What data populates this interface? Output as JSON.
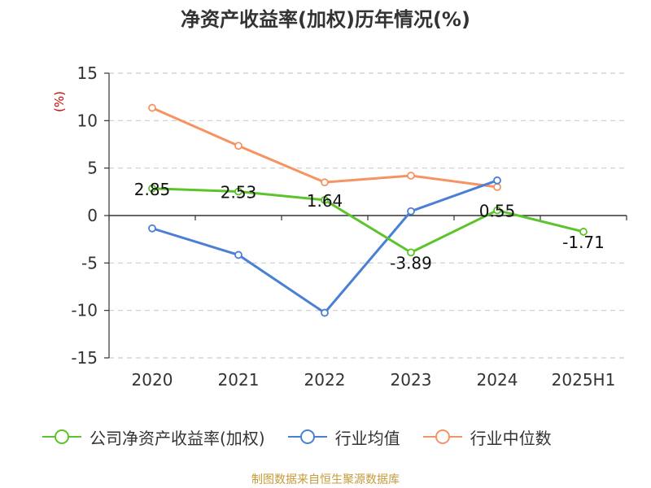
{
  "title": "净资产收益率(加权)历年情况(%)",
  "source_note": "制图数据来自恒生聚源数据库",
  "chart_data": {
    "type": "line",
    "title": "净资产收益率(加权)历年情况(%)",
    "ylabel": "(%)",
    "xlabel": "",
    "categories": [
      "2020",
      "2021",
      "2022",
      "2023",
      "2024",
      "2025H1"
    ],
    "ylim": [
      -15,
      15
    ],
    "yticks": [
      15,
      10,
      5,
      0,
      -5,
      -10,
      -15
    ],
    "grid": true,
    "legend_position": "bottom",
    "series": [
      {
        "name": "公司净资产收益率(加权)",
        "color": "#5cc42a",
        "values": [
          2.85,
          2.53,
          1.64,
          -3.89,
          0.55,
          -1.71
        ],
        "labels": [
          "2.85",
          "2.53",
          "1.64",
          "-3.89",
          "0.55",
          "-1.71"
        ]
      },
      {
        "name": "行业均值",
        "color": "#4a7fd6",
        "values": [
          -1.35,
          -4.15,
          -10.25,
          0.45,
          3.7,
          null
        ]
      },
      {
        "name": "行业中位数",
        "color": "#f59363",
        "values": [
          11.35,
          7.35,
          3.5,
          4.2,
          3.0,
          null
        ]
      }
    ]
  }
}
